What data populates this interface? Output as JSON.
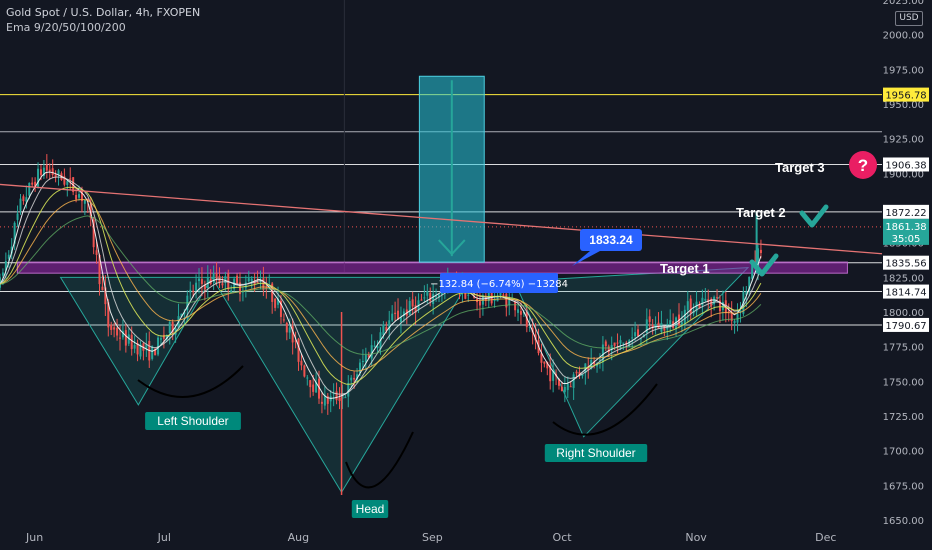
{
  "header": {
    "symbol_title": "Gold Spot / U.S. Dollar, 4h, FXOPEN",
    "indicator": "Ema 9/20/50/100/200"
  },
  "currency": "USD",
  "colors": {
    "background": "#131722",
    "bull": "#26a69a",
    "bear": "#ef5350",
    "neckline_zone": "#9c27b0",
    "target_box": "#26c6da",
    "yellow_level": "#ffeb3b",
    "trendline": "#e57373",
    "check": "#26a69a",
    "question": "#e91e63"
  },
  "chart_data": {
    "type": "line",
    "title": "Gold Spot / U.S. Dollar, 4h, FXOPEN",
    "xlabel": "",
    "ylabel": "",
    "x_ticks": [
      "Jun",
      "Jul",
      "Aug",
      "Sep",
      "Oct",
      "Nov",
      "Dec"
    ],
    "x_range": [
      "2023-05-24",
      "2023-12-14"
    ],
    "ylim": [
      1650,
      2025
    ],
    "y_ticks": [
      1650,
      1675,
      1700,
      1725,
      1750,
      1775,
      1800,
      1825,
      1850,
      1875,
      1900,
      1925,
      1950,
      1975,
      2000,
      2025
    ],
    "grid": false,
    "series": [
      {
        "name": "",
        "x": [
          "2023-05-24",
          "2023-05-29",
          "2023-06-03",
          "2023-06-08",
          "2023-06-13",
          "2023-06-18",
          "2023-06-23",
          "2023-06-28",
          "2023-07-03",
          "2023-07-08",
          "2023-07-13",
          "2023-07-18",
          "2023-07-23",
          "2023-07-28",
          "2023-08-02",
          "2023-08-07",
          "2023-08-12",
          "2023-08-17",
          "2023-08-22",
          "2023-08-27",
          "2023-09-01",
          "2023-09-06",
          "2023-09-11",
          "2023-09-16",
          "2023-09-21",
          "2023-09-26",
          "2023-10-01",
          "2023-10-06",
          "2023-10-11",
          "2023-10-16",
          "2023-10-21",
          "2023-10-26",
          "2023-10-31",
          "2023-11-05",
          "2023-11-10",
          "2023-11-14",
          "2023-11-18"
        ],
        "values": [
          1820,
          1880,
          1904,
          1895,
          1880,
          1790,
          1778,
          1770,
          1790,
          1818,
          1825,
          1818,
          1825,
          1802,
          1760,
          1735,
          1742,
          1770,
          1793,
          1803,
          1812,
          1822,
          1808,
          1812,
          1805,
          1765,
          1745,
          1760,
          1773,
          1778,
          1790,
          1790,
          1805,
          1810,
          1795,
          1830,
          1866
        ]
      }
    ],
    "horizontal_levels": [
      {
        "label": "1956.78",
        "value": 1956.78,
        "color": "#ffeb3b"
      },
      {
        "label": "1906.38",
        "value": 1906.38,
        "color": "#ffffff"
      },
      {
        "label": "1872.22",
        "value": 1872.22,
        "color": "#ffffff"
      },
      {
        "label": "1835.56",
        "value": 1835.56,
        "color": "#ffffff"
      },
      {
        "label": "1814.74",
        "value": 1814.74,
        "color": "#ffffff"
      },
      {
        "label": "1790.67",
        "value": 1790.67,
        "color": "#ffffff"
      }
    ],
    "extra_level": 1930,
    "current_price": {
      "value": 1861.38,
      "countdown": "35:05"
    },
    "neckline_zone": {
      "from": 1828,
      "to": 1836
    },
    "target_projection": {
      "from": 1970,
      "to": 1836,
      "date_from": "2023-08-29",
      "date_to": "2023-09-13"
    },
    "trendline": {
      "start": {
        "date": "2023-05-24",
        "value": 1892
      },
      "end": {
        "date": "2023-12-14",
        "value": 1842
      }
    },
    "measure_label": "−132.84 (−6.74%) −13284",
    "price_callout": "1833.24",
    "annotations": [
      {
        "text": "Left Shoulder",
        "kind": "label-box"
      },
      {
        "text": "Head",
        "kind": "label-box"
      },
      {
        "text": "Right Shoulder",
        "kind": "label-box"
      },
      {
        "text": "Target 1",
        "kind": "text"
      },
      {
        "text": "Target 2",
        "kind": "text"
      },
      {
        "text": "Target 3",
        "kind": "text"
      }
    ]
  }
}
